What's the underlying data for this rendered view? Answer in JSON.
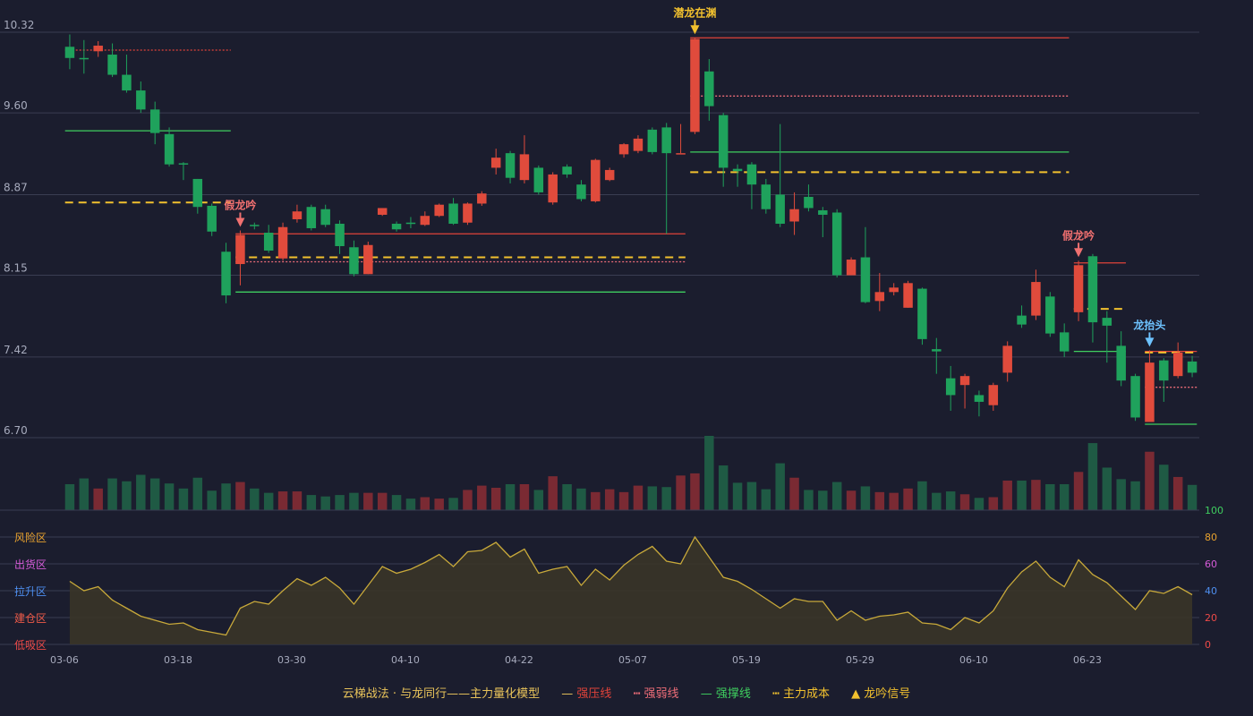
{
  "chart_data": {
    "type": "candlestick",
    "price_axis": {
      "ticks": [
        10.32,
        9.6,
        8.87,
        8.15,
        7.42,
        6.7
      ],
      "range": [
        6.7,
        10.32
      ]
    },
    "x_tick_labels": [
      "03-06",
      "03-18",
      "03-30",
      "04-10",
      "04-22",
      "05-07",
      "05-19",
      "05-29",
      "06-10",
      "06-23"
    ],
    "x_tick_indices": [
      0,
      8,
      16,
      24,
      32,
      40,
      48,
      56,
      64,
      72
    ],
    "candles": [
      [
        10.19,
        10.09,
        10.3,
        9.99
      ],
      [
        10.09,
        10.08,
        10.25,
        9.95
      ],
      [
        10.15,
        10.2,
        10.24,
        10.1
      ],
      [
        10.12,
        9.94,
        10.22,
        9.92
      ],
      [
        9.94,
        9.8,
        10.12,
        9.78
      ],
      [
        9.8,
        9.63,
        9.88,
        9.6
      ],
      [
        9.63,
        9.42,
        9.7,
        9.32
      ],
      [
        9.41,
        9.14,
        9.47,
        9.12
      ],
      [
        9.15,
        9.14,
        9.16,
        9.0
      ],
      [
        9.01,
        8.76,
        9.01,
        8.7
      ],
      [
        8.77,
        8.54,
        8.79,
        8.5
      ],
      [
        8.36,
        7.97,
        8.44,
        7.9
      ],
      [
        8.25,
        8.51,
        8.55,
        8.06
      ],
      [
        8.6,
        8.59,
        8.62,
        8.56
      ],
      [
        8.53,
        8.37,
        8.6,
        8.35
      ],
      [
        8.3,
        8.58,
        8.62,
        8.28
      ],
      [
        8.65,
        8.72,
        8.78,
        8.62
      ],
      [
        8.76,
        8.57,
        8.78,
        8.55
      ],
      [
        8.74,
        8.6,
        8.78,
        8.58
      ],
      [
        8.61,
        8.41,
        8.64,
        8.34
      ],
      [
        8.4,
        8.16,
        8.46,
        8.14
      ],
      [
        8.16,
        8.42,
        8.45,
        8.16
      ],
      [
        8.69,
        8.75,
        8.75,
        8.68
      ],
      [
        8.61,
        8.56,
        8.63,
        8.54
      ],
      [
        8.62,
        8.61,
        8.67,
        8.57
      ],
      [
        8.6,
        8.68,
        8.72,
        8.59
      ],
      [
        8.68,
        8.78,
        8.79,
        8.67
      ],
      [
        8.79,
        8.61,
        8.84,
        8.6
      ],
      [
        8.62,
        8.79,
        8.8,
        8.6
      ],
      [
        8.79,
        8.88,
        8.9,
        8.77
      ],
      [
        9.11,
        9.2,
        9.28,
        9.05
      ],
      [
        9.24,
        9.02,
        9.26,
        8.97
      ],
      [
        9.0,
        9.23,
        9.4,
        8.97
      ],
      [
        9.11,
        8.89,
        9.13,
        8.87
      ],
      [
        8.8,
        9.05,
        9.07,
        8.78
      ],
      [
        9.12,
        9.05,
        9.14,
        9.02
      ],
      [
        8.96,
        8.83,
        9.0,
        8.81
      ],
      [
        8.81,
        9.18,
        9.19,
        8.8
      ],
      [
        9.0,
        9.09,
        9.11,
        8.99
      ],
      [
        9.23,
        9.32,
        9.33,
        9.2
      ],
      [
        9.26,
        9.37,
        9.4,
        9.24
      ],
      [
        9.45,
        9.25,
        9.47,
        9.23
      ],
      [
        9.47,
        9.24,
        9.51,
        8.52
      ],
      [
        9.24,
        9.24,
        9.5,
        9.24
      ],
      [
        9.43,
        10.26,
        10.27,
        9.41
      ],
      [
        9.97,
        9.66,
        10.08,
        9.53
      ],
      [
        9.58,
        9.11,
        9.6,
        8.94
      ],
      [
        9.1,
        9.08,
        9.14,
        8.94
      ],
      [
        9.14,
        8.96,
        9.16,
        8.74
      ],
      [
        8.96,
        8.74,
        9.01,
        8.7
      ],
      [
        8.87,
        8.61,
        9.5,
        8.58
      ],
      [
        8.63,
        8.74,
        8.89,
        8.51
      ],
      [
        8.85,
        8.75,
        8.96,
        8.72
      ],
      [
        8.73,
        8.69,
        8.76,
        8.49
      ],
      [
        8.71,
        8.15,
        8.74,
        8.13
      ],
      [
        8.15,
        8.29,
        8.31,
        8.15
      ],
      [
        8.31,
        7.91,
        8.58,
        7.9
      ],
      [
        7.92,
        8.0,
        8.17,
        7.83
      ],
      [
        8.0,
        8.04,
        8.08,
        7.97
      ],
      [
        7.86,
        8.08,
        8.1,
        7.86
      ],
      [
        8.03,
        7.58,
        8.04,
        7.53
      ],
      [
        7.49,
        7.47,
        7.59,
        7.27
      ],
      [
        7.23,
        7.08,
        7.34,
        6.94
      ],
      [
        7.17,
        7.25,
        7.27,
        6.96
      ],
      [
        7.08,
        7.02,
        7.12,
        6.89
      ],
      [
        6.99,
        7.17,
        7.19,
        6.94
      ],
      [
        7.28,
        7.52,
        7.56,
        7.2
      ],
      [
        7.79,
        7.71,
        7.88,
        7.68
      ],
      [
        7.79,
        8.09,
        8.2,
        7.75
      ],
      [
        7.96,
        7.63,
        8.0,
        7.6
      ],
      [
        7.64,
        7.47,
        7.72,
        7.42
      ],
      [
        7.82,
        8.24,
        8.28,
        7.74
      ],
      [
        8.32,
        7.73,
        8.34,
        7.55
      ],
      [
        7.77,
        7.7,
        7.83,
        7.37
      ],
      [
        7.52,
        7.21,
        7.65,
        7.16
      ],
      [
        7.25,
        6.88,
        7.27,
        6.85
      ],
      [
        6.84,
        7.37,
        7.48,
        6.84
      ],
      [
        7.39,
        7.21,
        7.41,
        7.02
      ],
      [
        7.25,
        7.46,
        7.55,
        7.23
      ],
      [
        7.38,
        7.28,
        7.43,
        7.24
      ]
    ],
    "volume": [
      36,
      44,
      30,
      44,
      40,
      49,
      44,
      37,
      30,
      45,
      27,
      37,
      39,
      30,
      24,
      26,
      26,
      21,
      19,
      21,
      24,
      24,
      24,
      21,
      16,
      18,
      16,
      17,
      28,
      34,
      31,
      36,
      36,
      28,
      47,
      36,
      30,
      25,
      29,
      25,
      34,
      33,
      32,
      48,
      51,
      103,
      62,
      38,
      39,
      29,
      65,
      45,
      28,
      27,
      39,
      27,
      33,
      25,
      24,
      30,
      40,
      24,
      26,
      22,
      17,
      18,
      41,
      41,
      42,
      36,
      36,
      53,
      93,
      59,
      43,
      40,
      81,
      63,
      46,
      35
    ],
    "risk_index": [
      47,
      40,
      43,
      33,
      27,
      21,
      18,
      15,
      16,
      11,
      9,
      7,
      27,
      32,
      30,
      40,
      49,
      44,
      50,
      42,
      30,
      44,
      58,
      53,
      56,
      61,
      67,
      58,
      69,
      70,
      76,
      65,
      71,
      53,
      56,
      58,
      44,
      56,
      48,
      59,
      67,
      73,
      62,
      60,
      80,
      65,
      50,
      47,
      41,
      34,
      27,
      34,
      32,
      32,
      18,
      25,
      18,
      21,
      22,
      24,
      16,
      15,
      11,
      20,
      16,
      25,
      42,
      54,
      62,
      50,
      43,
      63,
      52,
      46,
      36,
      26,
      40,
      38,
      43,
      37
    ],
    "sub_axis": {
      "ticks": [
        0,
        20,
        40,
        60,
        80,
        100
      ],
      "range": [
        0,
        100
      ]
    },
    "zone_labels": [
      "风险区",
      "出货区",
      "拉升区",
      "建仓区",
      "低吸区"
    ],
    "signals": [
      {
        "label": "假龙吟",
        "index": 12,
        "kind": "false"
      },
      {
        "label": "潜龙在渊",
        "index": 44,
        "kind": "main"
      },
      {
        "label": "假龙吟",
        "index": 71,
        "kind": "false"
      },
      {
        "label": "龙抬头",
        "index": 76,
        "kind": "head"
      }
    ],
    "levels": [
      {
        "kind": "resistance",
        "value": 10.16,
        "from": 0,
        "to": 11,
        "style": "dotted"
      },
      {
        "kind": "support",
        "value": 9.44,
        "from": 0,
        "to": 11,
        "style": "solid"
      },
      {
        "kind": "cost",
        "value": 8.8,
        "from": 0,
        "to": 11,
        "style": "dashed"
      },
      {
        "kind": "resistance",
        "value": 8.52,
        "from": 12,
        "to": 43,
        "style": "solid"
      },
      {
        "kind": "cost",
        "value": 8.31,
        "from": 12,
        "to": 43,
        "style": "dashed"
      },
      {
        "kind": "weak",
        "value": 8.27,
        "from": 12,
        "to": 43,
        "style": "dotted"
      },
      {
        "kind": "support",
        "value": 8.0,
        "from": 12,
        "to": 43,
        "style": "solid"
      },
      {
        "kind": "resistance",
        "value": 10.27,
        "from": 44,
        "to": 70,
        "style": "solid"
      },
      {
        "kind": "weak",
        "value": 9.75,
        "from": 44,
        "to": 70,
        "style": "dotted"
      },
      {
        "kind": "support",
        "value": 9.25,
        "from": 44,
        "to": 70,
        "style": "solid"
      },
      {
        "kind": "cost",
        "value": 9.07,
        "from": 44,
        "to": 70,
        "style": "dashed"
      },
      {
        "kind": "resistance",
        "value": 8.26,
        "from": 71,
        "to": 74,
        "style": "solid"
      },
      {
        "kind": "cost",
        "value": 7.85,
        "from": 71,
        "to": 74,
        "style": "dashed"
      },
      {
        "kind": "support",
        "value": 7.47,
        "from": 71,
        "to": 74,
        "style": "solid"
      },
      {
        "kind": "resistance",
        "value": 7.47,
        "from": 76,
        "to": 79,
        "style": "solid"
      },
      {
        "kind": "cost",
        "value": 7.46,
        "from": 76,
        "to": 79,
        "style": "dashed"
      },
      {
        "kind": "weak",
        "value": 7.15,
        "from": 76,
        "to": 79,
        "style": "dotted"
      },
      {
        "kind": "support",
        "value": 6.82,
        "from": 76,
        "to": 79,
        "style": "solid"
      }
    ],
    "colors": {
      "up": "#e04b3c",
      "down": "#1fa25c",
      "vol_up": "#7a2a33",
      "vol_down": "#1f5a44",
      "grid": "#3a3d52",
      "line": "#c8a93a",
      "area": "#3a3528",
      "cost": "#f2c12e",
      "weak": "#ee6d78",
      "support": "#3fce5f",
      "resistance": "#e0433a"
    }
  },
  "legend": {
    "title": "云梯战法 · 与龙同行——主力量化模型",
    "items": [
      {
        "label": "强压线",
        "color": "#e0433a",
        "glyph": "—"
      },
      {
        "label": "强弱线",
        "color": "#ee6d78",
        "glyph": "┅"
      },
      {
        "label": "强撑线",
        "color": "#3fce5f",
        "glyph": "—"
      },
      {
        "label": "主力成本",
        "color": "#f2c12e",
        "glyph": "┅"
      },
      {
        "label": "龙吟信号",
        "color": "#f2c12e",
        "glyph": "▲"
      }
    ]
  }
}
